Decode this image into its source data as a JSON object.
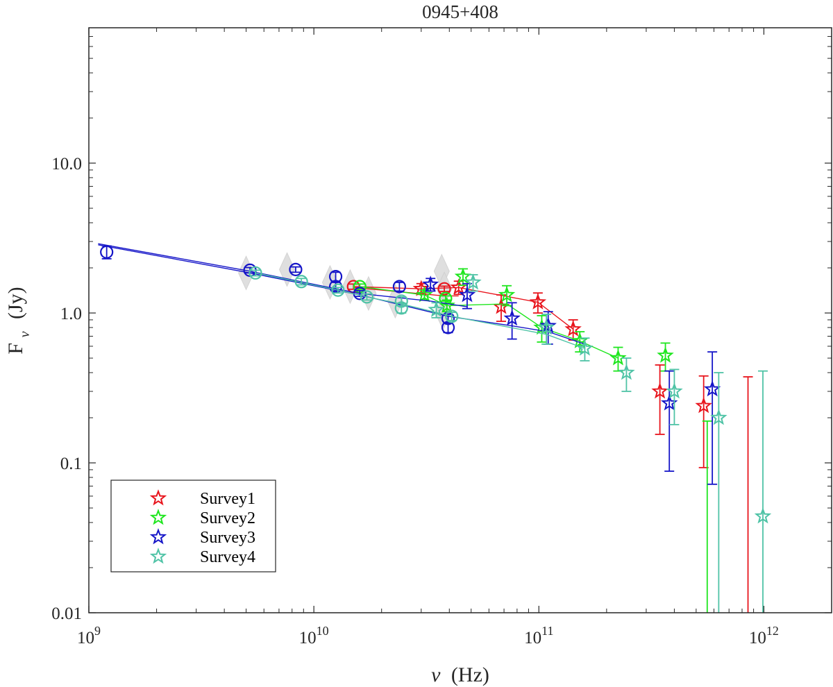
{
  "chart_data": {
    "type": "scatter",
    "title": "0945+408",
    "xlabel": {
      "main": "ν",
      "unit": "(Hz)"
    },
    "ylabel": {
      "main": "F",
      "sub": "ν",
      "unit": "(Jy)"
    },
    "xscale": "log",
    "yscale": "log",
    "xlim": [
      1000000000.0,
      2000000000000.0
    ],
    "ylim": [
      0.01,
      80
    ],
    "x_ticks": [
      {
        "value": 1000000000.0,
        "base": "10",
        "exp": "9"
      },
      {
        "value": 10000000000.0,
        "base": "10",
        "exp": "10"
      },
      {
        "value": 100000000000.0,
        "base": "10",
        "exp": "11"
      },
      {
        "value": 1000000000000.0,
        "base": "10",
        "exp": "12"
      }
    ],
    "y_ticks": [
      {
        "value": 0.01,
        "label": "0.01"
      },
      {
        "value": 0.1,
        "label": "0.1"
      },
      {
        "value": 1,
        "label": "1.0"
      },
      {
        "value": 10,
        "label": "10.0"
      }
    ],
    "grid": false,
    "legend_position": "bottom-left",
    "gray_points": [
      [
        5000000000.0,
        1.85
      ],
      [
        7600000000.0,
        1.95
      ],
      [
        11800000000.0,
        1.6
      ],
      [
        17500000000.0,
        1.35
      ],
      [
        14500000000.0,
        1.5
      ],
      [
        23000000000.0,
        1.2
      ],
      [
        37000000000.0,
        1.9
      ],
      [
        38000000000.0,
        1.45
      ],
      [
        37500000000.0,
        1.0
      ]
    ],
    "series": [
      {
        "name": "Survey1",
        "color": "#e8141c",
        "circles": [
          {
            "x": 15000000000.0,
            "y": 1.5,
            "err": 0.06
          },
          {
            "x": 38000000000.0,
            "y": 1.45,
            "err": 0.06
          }
        ],
        "stars": [
          {
            "x": 30000000000.0,
            "y": 1.45,
            "err": 0.12
          },
          {
            "x": 44000000000.0,
            "y": 1.48,
            "err": 0.15
          },
          {
            "x": 68000000000.0,
            "y": 1.1,
            "err": 0.22
          },
          {
            "x": 99000000000.0,
            "y": 1.18,
            "err": 0.18
          },
          {
            "x": 142000000000.0,
            "y": 0.78,
            "err": 0.12
          },
          {
            "x": 345000000000.0,
            "y": 0.3,
            "lo": 0.155,
            "hi": 0.45
          },
          {
            "x": 540000000000.0,
            "y": 0.24,
            "lo": 0.093,
            "hi": 0.38
          }
        ],
        "bars_only": [
          {
            "x": 850000000000.0,
            "lo": 0.01,
            "hi": 0.375
          }
        ],
        "lines": [
          [
            [
              15000000000.0,
              1.5
            ],
            [
              30000000000.0,
              1.45
            ],
            [
              44000000000.0,
              1.48
            ],
            [
              99000000000.0,
              1.18
            ],
            [
              142000000000.0,
              0.78
            ]
          ],
          [
            [
              15000000000.0,
              1.48
            ],
            [
              38000000000.0,
              1.3
            ],
            [
              44000000000.0,
              1.3
            ]
          ]
        ]
      },
      {
        "name": "Survey2",
        "color": "#1ee61e",
        "circles": [
          {
            "x": 16000000000.0,
            "y": 1.5,
            "err": 0.06
          },
          {
            "x": 38500000000.0,
            "y": 1.25,
            "err": 0.05
          }
        ],
        "stars": [
          {
            "x": 31000000000.0,
            "y": 1.32,
            "err": 0.1
          },
          {
            "x": 39000000000.0,
            "y": 1.12,
            "err": 0.1
          },
          {
            "x": 46000000000.0,
            "y": 1.75,
            "err": 0.22
          },
          {
            "x": 72000000000.0,
            "y": 1.32,
            "err": 0.2
          },
          {
            "x": 103000000000.0,
            "y": 0.8,
            "err": 0.16
          },
          {
            "x": 152000000000.0,
            "y": 0.65,
            "err": 0.1
          },
          {
            "x": 225000000000.0,
            "y": 0.5,
            "err": 0.09
          },
          {
            "x": 365000000000.0,
            "y": 0.52,
            "err": 0.11
          },
          {
            "x": 560000000000.0,
            "y": 0.01,
            "lo": 0.01,
            "hi": 0.19
          }
        ],
        "bars_only": [],
        "lines": [
          [
            [
              16000000000.0,
              1.5
            ],
            [
              31000000000.0,
              1.32
            ],
            [
              39000000000.0,
              1.12
            ],
            [
              72000000000.0,
              1.15
            ],
            [
              103000000000.0,
              0.8
            ],
            [
              152000000000.0,
              0.65
            ],
            [
              225000000000.0,
              0.5
            ]
          ]
        ]
      },
      {
        "name": "Survey3",
        "color": "#1515c8",
        "circles": [
          {
            "x": 1200000000.0,
            "y": 2.55,
            "err": 0.25
          },
          {
            "x": 5200000000.0,
            "y": 1.93,
            "err": 0.08
          },
          {
            "x": 8300000000.0,
            "y": 1.95,
            "err": 0.08
          },
          {
            "x": 12500000000.0,
            "y": 1.75,
            "err": 0.12
          },
          {
            "x": 12500000000.0,
            "y": 1.5,
            "err": 0.1
          },
          {
            "x": 16000000000.0,
            "y": 1.35,
            "err": 0.06
          },
          {
            "x": 24000000000.0,
            "y": 1.5,
            "err": 0.1
          },
          {
            "x": 39500000000.0,
            "y": 0.92,
            "err": 0.06
          },
          {
            "x": 39500000000.0,
            "y": 0.8,
            "err": 0.06
          }
        ],
        "stars": [
          {
            "x": 33000000000.0,
            "y": 1.55,
            "err": 0.15
          },
          {
            "x": 48000000000.0,
            "y": 1.32,
            "err": 0.25
          },
          {
            "x": 76000000000.0,
            "y": 0.92,
            "err": 0.25
          },
          {
            "x": 110000000000.0,
            "y": 0.82,
            "err": 0.2
          },
          {
            "x": 380000000000.0,
            "y": 0.25,
            "lo": 0.088,
            "hi": 0.41
          },
          {
            "x": 590000000000.0,
            "y": 0.31,
            "lo": 0.072,
            "hi": 0.55
          }
        ],
        "bars_only": [],
        "lines": [
          [
            [
              1100000000.0,
              2.9
            ],
            [
              5200000000.0,
              1.9
            ],
            [
              12500000000.0,
              1.45
            ],
            [
              16000000000.0,
              1.35
            ],
            [
              33000000000.0,
              1.2
            ],
            [
              48000000000.0,
              1.1
            ]
          ],
          [
            [
              1100000000.0,
              2.85
            ],
            [
              5200000000.0,
              1.85
            ],
            [
              12500000000.0,
              1.42
            ],
            [
              16000000000.0,
              1.32
            ],
            [
              39500000000.0,
              0.95
            ],
            [
              76000000000.0,
              0.82
            ],
            [
              110000000000.0,
              0.75
            ],
            [
              160000000000.0,
              0.62
            ]
          ]
        ]
      },
      {
        "name": "Survey4",
        "color": "#4fc3a6",
        "circles": [
          {
            "x": 5500000000.0,
            "y": 1.85,
            "err": 0.08
          },
          {
            "x": 8800000000.0,
            "y": 1.62,
            "err": 0.08
          },
          {
            "x": 12800000000.0,
            "y": 1.42,
            "err": 0.06
          },
          {
            "x": 17200000000.0,
            "y": 1.28,
            "err": 0.06
          },
          {
            "x": 24500000000.0,
            "y": 1.2,
            "err": 0.08
          },
          {
            "x": 24500000000.0,
            "y": 1.08,
            "err": 0.08
          },
          {
            "x": 41000000000.0,
            "y": 0.95,
            "err": 0.06
          }
        ],
        "stars": [
          {
            "x": 35000000000.0,
            "y": 1.05,
            "err": 0.12
          },
          {
            "x": 51000000000.0,
            "y": 1.6,
            "err": 0.2
          },
          {
            "x": 108000000000.0,
            "y": 0.8,
            "err": 0.18
          },
          {
            "x": 160000000000.0,
            "y": 0.58,
            "err": 0.1
          },
          {
            "x": 245000000000.0,
            "y": 0.4,
            "err": 0.1
          },
          {
            "x": 400000000000.0,
            "y": 0.3,
            "lo": 0.18,
            "hi": 0.42
          },
          {
            "x": 630000000000.0,
            "y": 0.2,
            "lo": 0.01,
            "hi": 0.4
          },
          {
            "x": 990000000000.0,
            "y": 0.044,
            "lo": 0.01,
            "hi": 0.41
          }
        ],
        "bars_only": [],
        "lines": [
          [
            [
              5500000000.0,
              1.85
            ],
            [
              12800000000.0,
              1.42
            ],
            [
              17200000000.0,
              1.28
            ],
            [
              24500000000.0,
              1.15
            ],
            [
              41000000000.0,
              0.95
            ],
            [
              108000000000.0,
              0.72
            ],
            [
              160000000000.0,
              0.58
            ]
          ]
        ]
      }
    ]
  }
}
